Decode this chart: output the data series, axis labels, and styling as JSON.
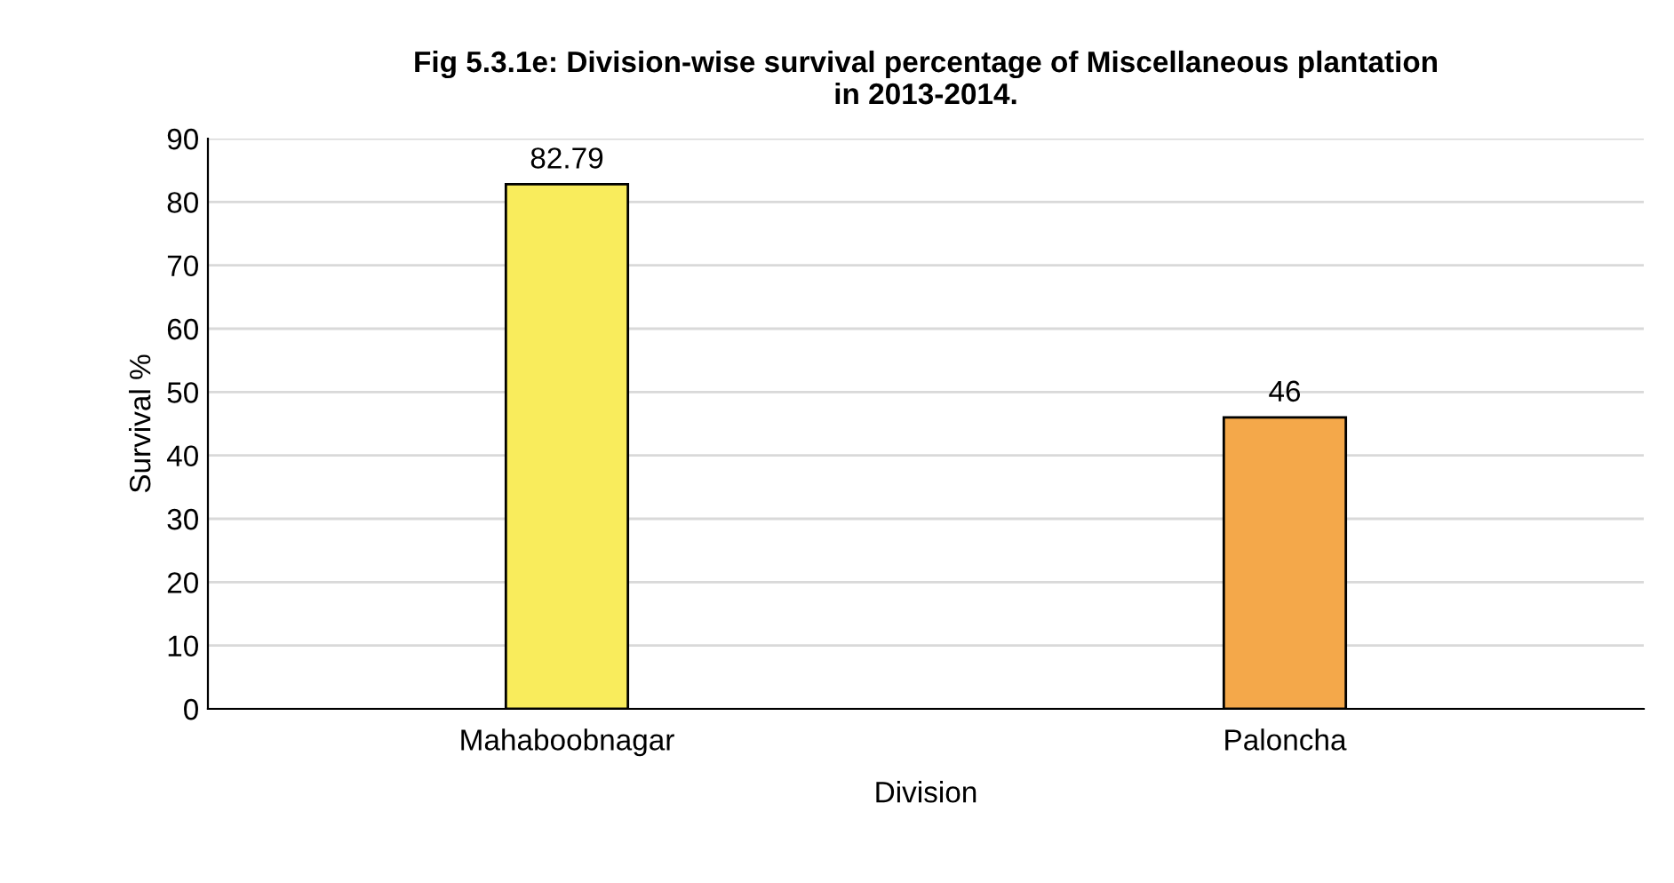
{
  "chart_data": {
    "type": "bar",
    "title": "Fig 5.3.1e: Division-wise survival percentage of Miscellaneous plantation\nin 2013-2014.",
    "xlabel": "Division",
    "ylabel": "Survival %",
    "categories": [
      "Mahaboobnagar",
      "Paloncha"
    ],
    "values": [
      82.79,
      46
    ],
    "colors": [
      "#f9ec5c",
      "#f4a84a"
    ],
    "value_labels": [
      "82.79",
      "46"
    ],
    "ylim": [
      0,
      90
    ],
    "yticks": [
      0,
      10,
      20,
      30,
      40,
      50,
      60,
      70,
      80,
      90
    ],
    "grid": "y",
    "legend": false
  }
}
